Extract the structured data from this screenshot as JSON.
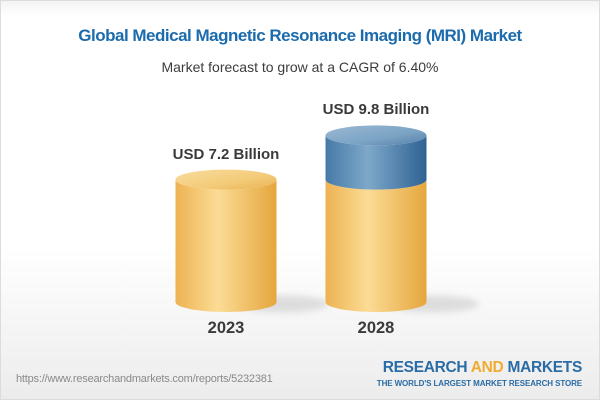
{
  "header": {
    "title": "Global Medical Magnetic Resonance Imaging (MRI) Market",
    "subtitle": "Market forecast to grow at a CAGR of 6.40%"
  },
  "chart_data": {
    "type": "bar",
    "variant": "3d-cylinder",
    "title": "Global Medical Magnetic Resonance Imaging (MRI) Market",
    "subtitle": "Market forecast to grow at a CAGR of 6.40%",
    "categories": [
      "2023",
      "2028"
    ],
    "values": [
      7.2,
      9.8
    ],
    "value_labels": [
      "USD 7.2 Billion",
      "USD 9.8 Billion"
    ],
    "unit": "USD Billion",
    "cagr_pct": 6.4,
    "ylim": [
      0,
      9.8
    ],
    "xlabel": "",
    "ylabel": "",
    "legend": false,
    "gridlines": false,
    "series": [
      {
        "name": "base-market",
        "values": [
          7.2,
          7.2
        ],
        "color_light": "#FBDC95",
        "color_dark": "#E5A63D"
      },
      {
        "name": "forecast-growth",
        "values": [
          0,
          2.6
        ],
        "color_light": "#7EA8CA",
        "color_dark": "#2E6293"
      }
    ]
  },
  "footer": {
    "url": "https://www.researchandmarkets.com/reports/5232381",
    "logo": {
      "research": "RESEARCH",
      "and": "AND",
      "markets": "MARKETS",
      "tagline": "THE WORLD'S LARGEST MARKET RESEARCH STORE"
    }
  },
  "palette": {
    "title_blue": "#1C6BAD",
    "label_dark": "#3A3A3A",
    "url_gray": "#8A8A8A",
    "logo_blue": "#2A6CA5",
    "logo_gold": "#EFAC30",
    "bar_yellow_light": "#FBDC95",
    "bar_yellow_dark": "#E5A63D",
    "bar_blue_light": "#7EA8CA",
    "bar_blue_dark": "#2E6293",
    "shadow_gray": "#D6D6D6"
  }
}
